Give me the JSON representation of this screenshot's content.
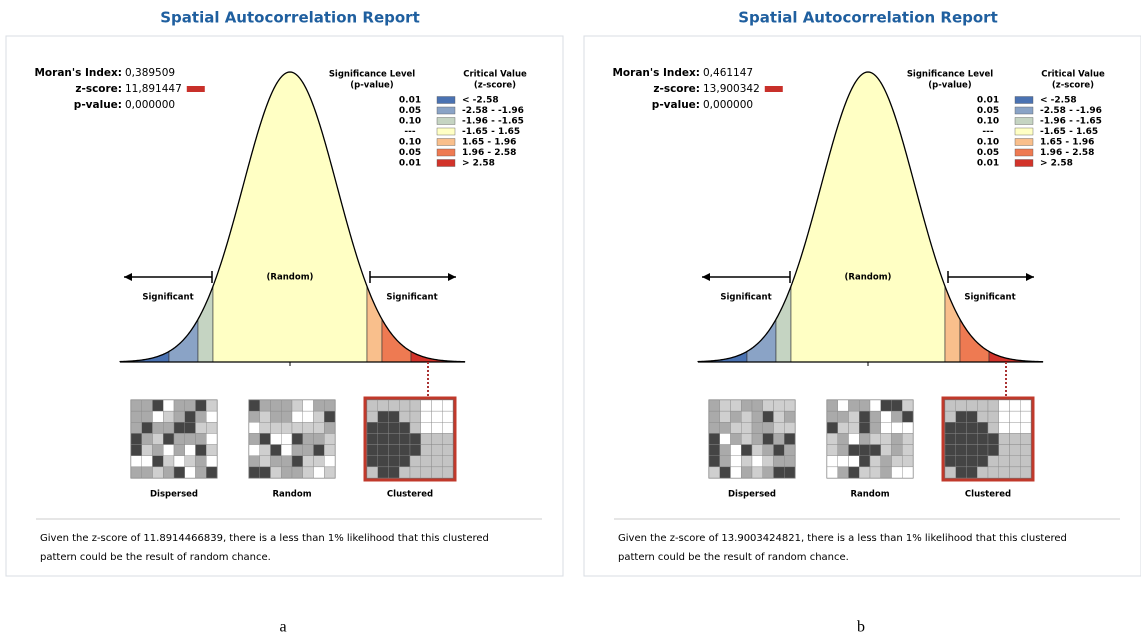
{
  "panels": [
    {
      "title": "Spatial Autocorrelation Report",
      "stats": [
        {
          "label": "Moran's Index:",
          "value": "0,389509"
        },
        {
          "label": "z-score:",
          "value": "11,891447"
        },
        {
          "label": "p-value:",
          "value": "0,000000"
        }
      ],
      "legend": {
        "p_header": [
          "Significance Level",
          "(p-value)"
        ],
        "z_header": [
          "Critical Value",
          "(z-score)"
        ],
        "rows": [
          [
            "0.01",
            "< -2.58"
          ],
          [
            "0.05",
            "-2.58 - -1.96"
          ],
          [
            "0.10",
            "-1.96 - -1.65"
          ],
          [
            "---",
            "-1.65 - 1.65"
          ],
          [
            "0.10",
            "1.65 - 1.96"
          ],
          [
            "0.05",
            "1.96 - 2.58"
          ],
          [
            "0.01",
            "> 2.58"
          ]
        ]
      },
      "curve_labels": {
        "left": "Significant",
        "center": "(Random)",
        "right": "Significant"
      },
      "patterns": [
        "Dispersed",
        "Random",
        "Clustered"
      ],
      "text": [
        "Given the z-score of 11.8914466839, there is a less than 1% likelihood that this clustered",
        "pattern could be the result of random chance."
      ],
      "caption": "a"
    },
    {
      "title": "Spatial Autocorrelation Report",
      "stats": [
        {
          "label": "Moran's Index:",
          "value": "0,461147"
        },
        {
          "label": "z-score:",
          "value": "13,900342"
        },
        {
          "label": "p-value:",
          "value": "0,000000"
        }
      ],
      "legend": {
        "p_header": [
          "Significance Level",
          "(p-value)"
        ],
        "z_header": [
          "Critical Value",
          "(z-score)"
        ],
        "rows": [
          [
            "0.01",
            "< -2.58"
          ],
          [
            "0.05",
            "-2.58 - -1.96"
          ],
          [
            "0.10",
            "-1.96 - -1.65"
          ],
          [
            "---",
            "-1.65 - 1.65"
          ],
          [
            "0.10",
            "1.65 - 1.96"
          ],
          [
            "0.05",
            "1.96 - 2.58"
          ],
          [
            "0.01",
            "> 2.58"
          ]
        ]
      },
      "curve_labels": {
        "left": "Significant",
        "center": "(Random)",
        "right": "Significant"
      },
      "patterns": [
        "Dispersed",
        "Random",
        "Clustered"
      ],
      "text": [
        "Given the z-score of 13.9003424821, there is a less than 1% likelihood that this clustered",
        "pattern could be the result of random chance."
      ],
      "caption": "b"
    }
  ]
}
